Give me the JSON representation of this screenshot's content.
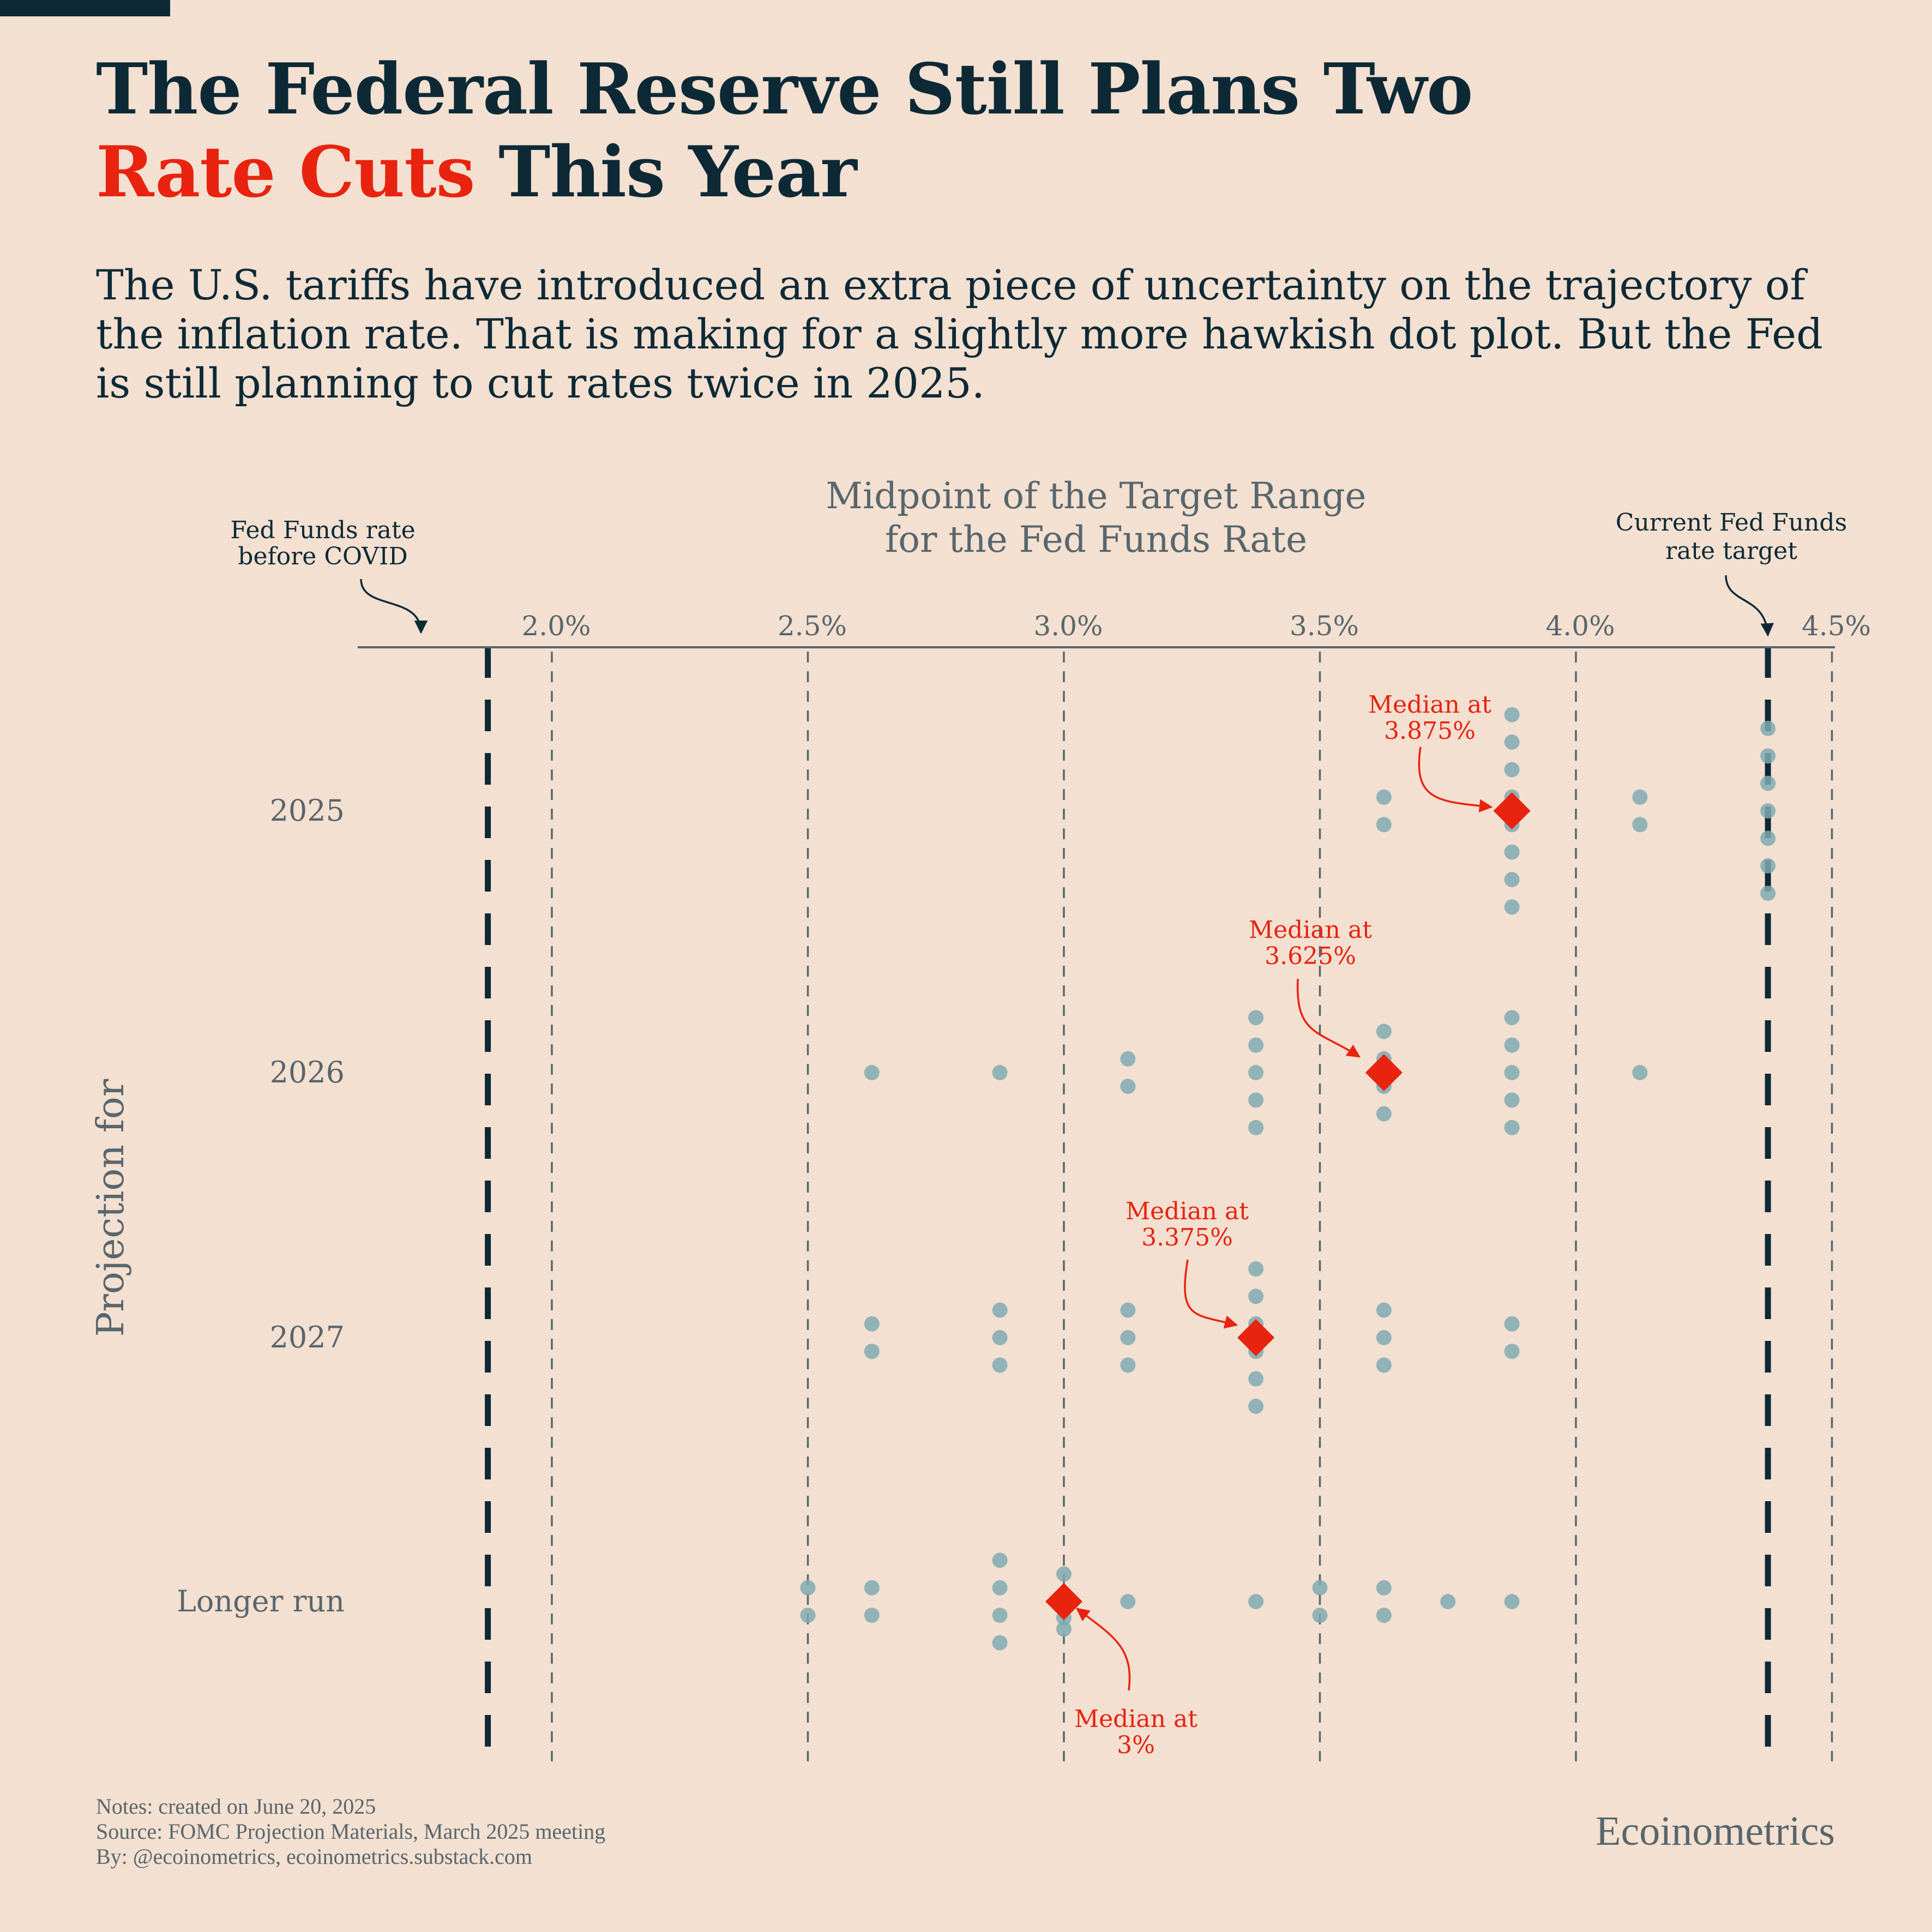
{
  "header": {
    "title_line1": "The Federal Reserve Still Plans Two",
    "title_highlight": "Rate Cuts",
    "title_rest": " This Year",
    "subtitle": "The U.S. tariffs have introduced an extra piece of uncertainty on the trajectory of the inflation rate. That is making for a slightly more hawkish dot plot. But the Fed is still planning to cut rates twice in 2025."
  },
  "colors": {
    "background": "#f3e0d1",
    "text_dark": "#0d2936",
    "accent_red": "#e8230f",
    "dot": "#7fa9b1",
    "grid": "#58666d",
    "muted": "#58666d"
  },
  "annotations": {
    "pre_covid": "Fed Funds rate\nbefore COVID",
    "current_target": "Current Fed Funds\nrate target"
  },
  "chart_data": {
    "type": "scatter",
    "x_title": "Midpoint of the Target Range\nfor the Fed Funds Rate",
    "y_title": "Projection for",
    "xlim": [
      1.75,
      4.5
    ],
    "x_ticks": [
      2.0,
      2.5,
      3.0,
      3.5,
      4.0,
      4.5
    ],
    "x_tick_labels": [
      "2.0%",
      "2.5%",
      "3.0%",
      "3.5%",
      "4.0%",
      "4.5%"
    ],
    "categories": [
      "2025",
      "2026",
      "2027",
      "Longer run"
    ],
    "reference_lines": [
      {
        "x": 1.875,
        "label": "Fed Funds rate\nbefore COVID"
      },
      {
        "x": 4.375,
        "label": "Current Fed Funds\nrate target"
      }
    ],
    "participants": [
      {
        "category": "2025",
        "values": [
          3.625,
          3.625,
          3.875,
          3.875,
          3.875,
          3.875,
          3.875,
          3.875,
          3.875,
          3.875,
          4.125,
          4.125,
          4.375,
          4.375,
          4.375,
          4.375,
          4.375,
          4.375,
          4.375
        ]
      },
      {
        "category": "2026",
        "values": [
          2.625,
          2.875,
          3.125,
          3.125,
          3.375,
          3.375,
          3.375,
          3.375,
          3.375,
          3.625,
          3.625,
          3.625,
          3.625,
          3.875,
          3.875,
          3.875,
          3.875,
          3.875,
          4.125
        ]
      },
      {
        "category": "2027",
        "values": [
          2.625,
          2.625,
          2.875,
          2.875,
          2.875,
          3.125,
          3.125,
          3.125,
          3.375,
          3.375,
          3.375,
          3.375,
          3.375,
          3.375,
          3.625,
          3.625,
          3.625,
          3.875,
          3.875
        ]
      },
      {
        "category": "Longer run",
        "values": [
          2.5,
          2.5,
          2.625,
          2.625,
          2.875,
          2.875,
          2.875,
          2.875,
          3.0,
          3.0,
          3.0,
          3.125,
          3.375,
          3.5,
          3.5,
          3.625,
          3.625,
          3.75,
          3.875
        ]
      }
    ],
    "medians": [
      {
        "category": "2025",
        "value": 3.875,
        "label": "Median at\n3.875%"
      },
      {
        "category": "2026",
        "value": 3.625,
        "label": "Median at\n3.625%"
      },
      {
        "category": "2027",
        "value": 3.375,
        "label": "Median at\n3.375%"
      },
      {
        "category": "Longer run",
        "value": 3.0,
        "label": "Median at\n3%"
      }
    ]
  },
  "footer": {
    "notes": "Notes: created on June 20, 2025",
    "source": "Source: FOMC Projection Materials, March 2025 meeting",
    "by": "By: @ecoinometrics, ecoinometrics.substack.com",
    "brand": "Ecoinometrics"
  }
}
